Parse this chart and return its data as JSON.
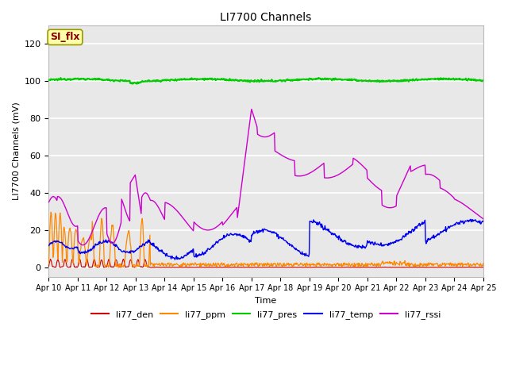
{
  "title": "LI7700 Channels",
  "xlabel": "Time",
  "ylabel": "LI7700 Channels (mV)",
  "ylim": [
    -5,
    130
  ],
  "yticks": [
    0,
    20,
    40,
    60,
    80,
    100,
    120
  ],
  "fig_bg_color": "#ffffff",
  "plot_bg_color": "#e8e8e8",
  "grid_color": "#ffffff",
  "annotation_text": "SI_flx",
  "annotation_color": "#8b0000",
  "annotation_bg": "#ffffaa",
  "annotation_edge": "#999900",
  "legend_entries": [
    "li77_den",
    "li77_ppm",
    "li77_pres",
    "li77_temp",
    "li77_rssi"
  ],
  "line_colors": {
    "li77_den": "#cc0000",
    "li77_ppm": "#ff8800",
    "li77_pres": "#00cc00",
    "li77_temp": "#0000ee",
    "li77_rssi": "#cc00cc"
  },
  "xstart_day": 10,
  "xend_day": 25,
  "num_points": 800,
  "title_fontsize": 10,
  "label_fontsize": 8,
  "tick_fontsize": 7,
  "legend_fontsize": 8
}
